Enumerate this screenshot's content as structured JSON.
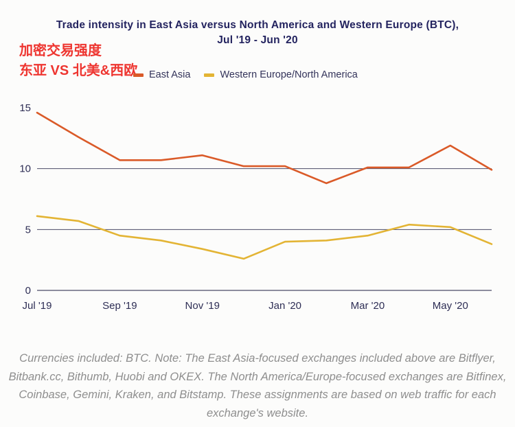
{
  "header": {
    "title_line1": "Trade intensity in East Asia versus North America and Western Europe (BTC),",
    "title_line2": "Jul '19 - Jun '20",
    "annotation_line1": "加密交易强度",
    "annotation_line2": "东亚 VS 北美&西欧"
  },
  "legend": {
    "items": [
      {
        "label": "East Asia",
        "color": "#da5a28"
      },
      {
        "label": "Western Europe/North America",
        "color": "#e3b434"
      }
    ]
  },
  "chart_data": {
    "type": "line",
    "x": [
      "Jul '19",
      "Aug '19",
      "Sep '19",
      "Oct '19",
      "Nov '19",
      "Dec '19",
      "Jan '20",
      "Feb '20",
      "Mar '20",
      "Apr '20",
      "May '20",
      "Jun '20"
    ],
    "x_tick_labels": [
      "Jul '19",
      "Sep '19",
      "Nov '19",
      "Jan '20",
      "Mar '20",
      "May '20"
    ],
    "series": [
      {
        "name": "East Asia",
        "color": "#da5a28",
        "values": [
          14.6,
          12.6,
          10.7,
          10.7,
          11.1,
          10.2,
          10.2,
          8.8,
          10.1,
          10.1,
          11.9,
          9.9
        ]
      },
      {
        "name": "Western Europe/North America",
        "color": "#e3b434",
        "values": [
          6.1,
          5.7,
          4.5,
          4.1,
          3.4,
          2.6,
          4.0,
          4.1,
          4.5,
          5.4,
          5.2,
          3.8
        ]
      }
    ],
    "ylim": [
      0,
      15
    ],
    "yticks": [
      0,
      5,
      10,
      15
    ],
    "gridlines": [
      5,
      10
    ],
    "grid_on": true,
    "legend_position": "top",
    "grid_color": "#4a4a66",
    "axis_label_color": "#2e2e55",
    "title": "Trade intensity in East Asia versus North America and Western Europe (BTC), Jul '19 - Jun '20",
    "xlabel": "",
    "ylabel": ""
  },
  "footer": {
    "text": "Currencies included: BTC. Note: The East Asia-focused exchanges included above are Bitflyer, Bitbank.cc, Bithumb, Huobi and OKEX. The North America/Europe-focused exchanges are Bitfinex, Coinbase, Gemini, Kraken, and Bitstamp. These assignments are based on web traffic for each exchange's website."
  }
}
